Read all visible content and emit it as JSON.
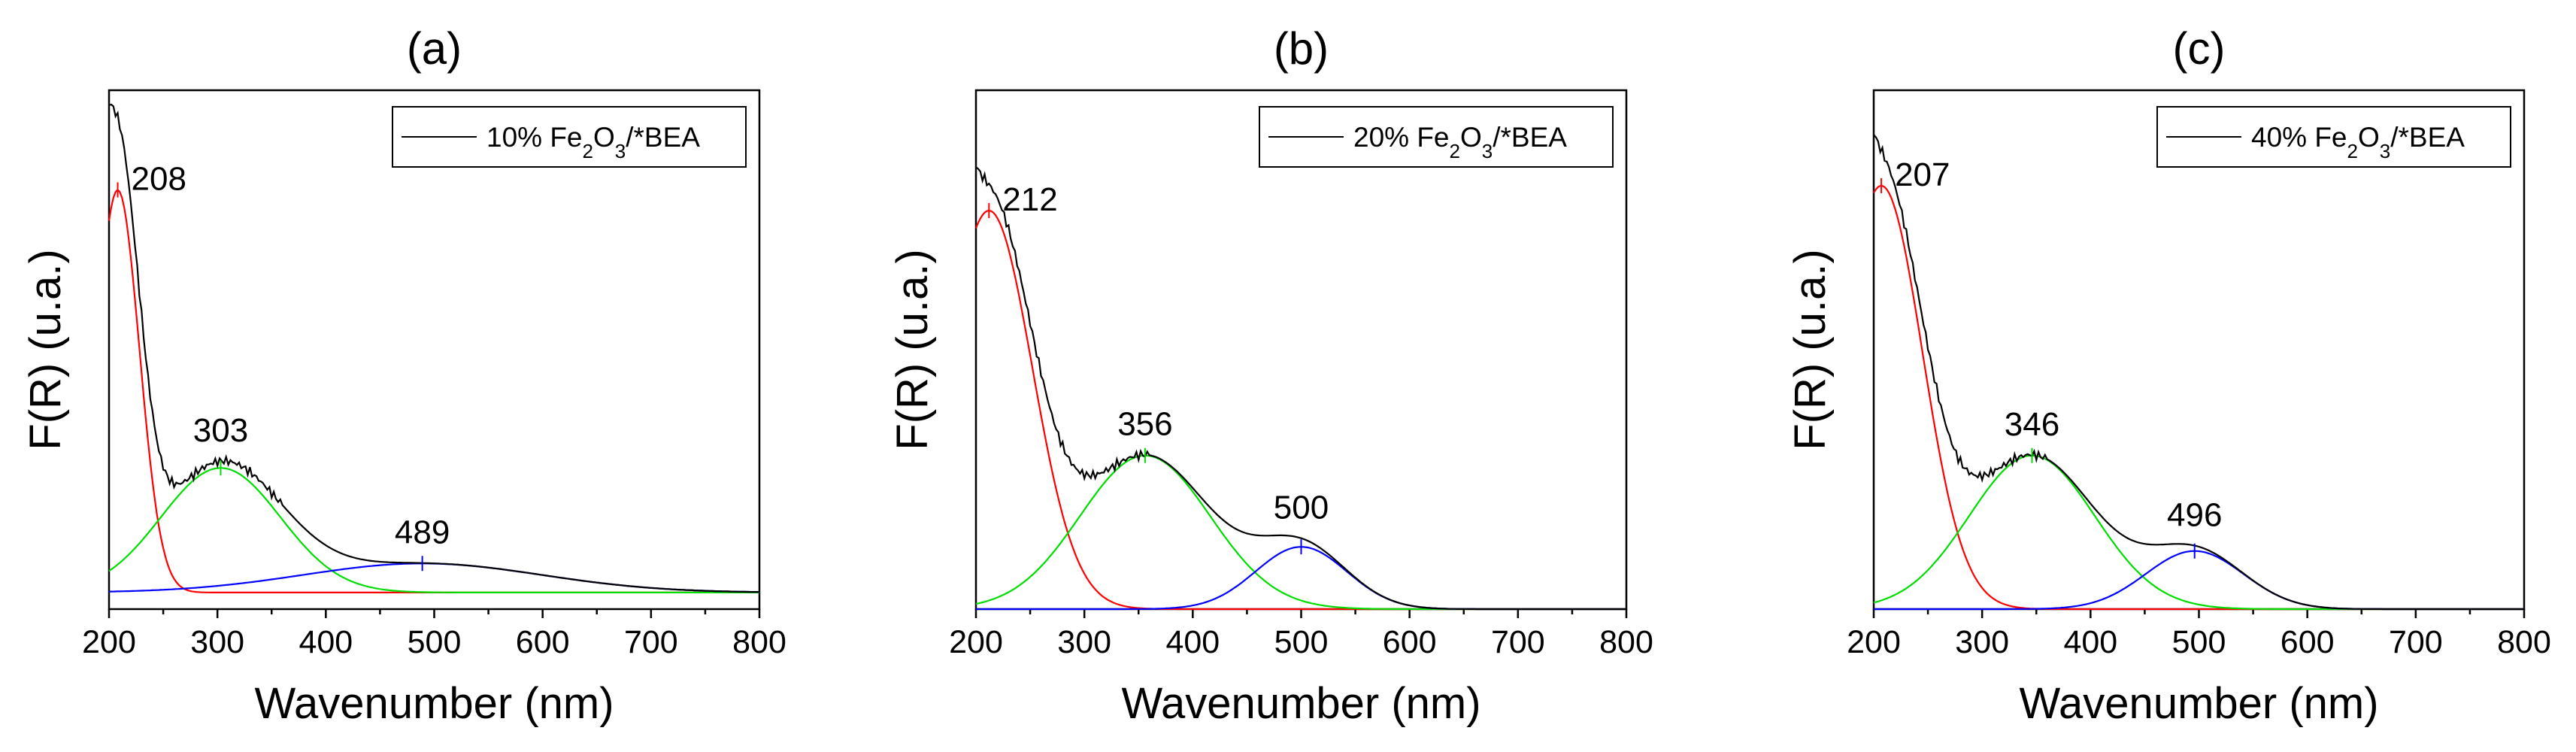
{
  "colors": {
    "total": "#000000",
    "peak1": "#ff0000",
    "peak2": "#00dd00",
    "peak3": "#0000ff"
  },
  "chart_data": [
    {
      "type": "line",
      "title": "(a)",
      "xlabel": "Wavenumber (nm)",
      "ylabel": "F(R) (u.a.)",
      "xlim": [
        200,
        800
      ],
      "xticks": [
        "200",
        "300",
        "400",
        "500",
        "600",
        "700",
        "800"
      ],
      "ylim": [
        0,
        1.25
      ],
      "legend": {
        "position": "top-right",
        "label_prefix": "10% Fe",
        "sub1": "2",
        "label_mid": "O",
        "sub2": "3",
        "label_suffix": "/*BEA"
      },
      "baseline": 0.04,
      "start_height": 1.2,
      "peaks": [
        {
          "label": "208",
          "center": 208,
          "height": 0.97,
          "sigma": 20
        },
        {
          "label": "303",
          "center": 303,
          "height": 0.3,
          "sigma": 55
        },
        {
          "label": "489",
          "center": 489,
          "height": 0.07,
          "sigma": 110
        }
      ]
    },
    {
      "type": "line",
      "title": "(b)",
      "xlabel": "Wavenumber (nm)",
      "ylabel": "F(R) (u.a.)",
      "xlim": [
        200,
        800
      ],
      "xticks": [
        "200",
        "300",
        "400",
        "500",
        "600",
        "700",
        "800"
      ],
      "ylim": [
        0,
        1.25
      ],
      "legend": {
        "position": "top-right",
        "label_prefix": "20% Fe",
        "sub1": "2",
        "label_mid": "O",
        "sub2": "3",
        "label_suffix": "/*BEA"
      },
      "baseline": 0.0,
      "start_height": 1.1,
      "peaks": [
        {
          "label": "212",
          "center": 212,
          "height": 0.96,
          "sigma": 40
        },
        {
          "label": "356",
          "center": 356,
          "height": 0.37,
          "sigma": 60
        },
        {
          "label": "500",
          "center": 500,
          "height": 0.15,
          "sigma": 42
        }
      ]
    },
    {
      "type": "line",
      "title": "(c)",
      "xlabel": "Wavenumber (nm)",
      "ylabel": "F(R) (u.a.)",
      "xlim": [
        200,
        800
      ],
      "xticks": [
        "200",
        "300",
        "400",
        "500",
        "600",
        "700",
        "800"
      ],
      "ylim": [
        0,
        1.25
      ],
      "legend": {
        "position": "top-right",
        "label_prefix": "40% Fe",
        "sub1": "2",
        "label_mid": "O",
        "sub2": "3",
        "label_suffix": "/*BEA"
      },
      "baseline": 0.0,
      "start_height": 1.15,
      "peaks": [
        {
          "label": "207",
          "center": 207,
          "height": 1.02,
          "sigma": 38
        },
        {
          "label": "346",
          "center": 346,
          "height": 0.37,
          "sigma": 58
        },
        {
          "label": "496",
          "center": 496,
          "height": 0.14,
          "sigma": 45
        }
      ]
    }
  ]
}
